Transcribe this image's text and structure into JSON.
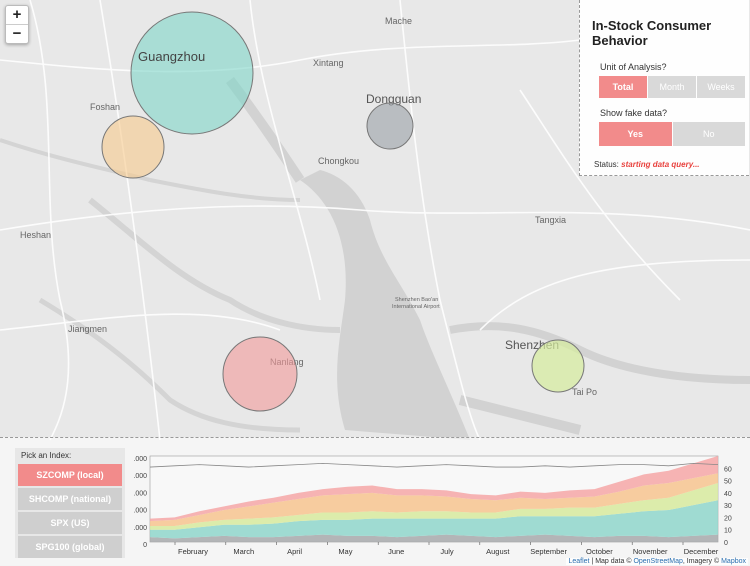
{
  "map": {
    "zoom_in": "+",
    "zoom_out": "−",
    "labels": [
      "Mache",
      "Xintang",
      "Foshan",
      "Dongguan",
      "Chongkou",
      "Heshan",
      "Tangxia",
      "Jiangmen",
      "Nanlang",
      "Shenzhen",
      "Tai Po",
      "Shenzhen Bao'an",
      "International Airport"
    ],
    "bubbles": [
      {
        "label": "Guangzhou",
        "color": "#7fd6c8"
      },
      {
        "label": "",
        "color": "#f7c98c"
      },
      {
        "label": "Dongguan",
        "color": "#9aa0a6"
      },
      {
        "label": "",
        "color": "#f29a9a"
      },
      {
        "label": "Shenzhen",
        "color": "#d6ec9c"
      }
    ]
  },
  "panel": {
    "title": "In-Stock Consumer Behavior",
    "unit_label": "Unit of Analysis?",
    "unit_options": [
      "Total",
      "Month",
      "Weeks"
    ],
    "fake_label": "Show fake data?",
    "fake_options": [
      "Yes",
      "No"
    ],
    "status_label": "Status:",
    "status_value": "starting data query..."
  },
  "index": {
    "title": "Pick an Index:",
    "options": [
      "SZCOMP (local)",
      "SHCOMP (national)",
      "SPX (US)",
      "SPG100 (global)"
    ]
  },
  "attribution": {
    "leaflet": "Leaflet",
    "rest": " | Map data © ",
    "osm": "OpenStreetMap",
    "imagery": ", Imagery © ",
    "mapbox": "Mapbox"
  },
  "chart_data": {
    "type": "area",
    "months": [
      "February",
      "March",
      "April",
      "May",
      "June",
      "July",
      "August",
      "September",
      "October",
      "November",
      "December"
    ],
    "left_ticks": [
      ".000",
      ".000",
      ".000",
      ".000",
      ".000",
      "0"
    ],
    "right_ticks": [
      60,
      50,
      40,
      30,
      20,
      10,
      0
    ],
    "right_ylim": [
      0,
      70
    ],
    "series": [
      {
        "name": "grey",
        "color": "#a7a9ac",
        "values": [
          4,
          3,
          4,
          5,
          4,
          4,
          5,
          6,
          5,
          5,
          4,
          5,
          6,
          5,
          4,
          5,
          6,
          5,
          4,
          5,
          5,
          4,
          5,
          6
        ]
      },
      {
        "name": "teal",
        "color": "#8fd6cb",
        "values": [
          6,
          7,
          8,
          9,
          10,
          11,
          12,
          12,
          13,
          14,
          15,
          14,
          13,
          14,
          15,
          16,
          15,
          16,
          17,
          18,
          20,
          22,
          25,
          28
        ]
      },
      {
        "name": "green",
        "color": "#d7ea9e",
        "values": [
          3,
          3,
          4,
          4,
          5,
          5,
          5,
          6,
          6,
          6,
          5,
          6,
          6,
          5,
          5,
          6,
          6,
          7,
          7,
          8,
          9,
          10,
          12,
          14
        ]
      },
      {
        "name": "orange",
        "color": "#f7c48f",
        "values": [
          4,
          5,
          6,
          8,
          10,
          12,
          13,
          14,
          15,
          15,
          14,
          13,
          12,
          11,
          10,
          9,
          8,
          8,
          9,
          10,
          12,
          12,
          10,
          8
        ]
      },
      {
        "name": "red",
        "color": "#f6a7a7",
        "values": [
          2,
          2,
          3,
          3,
          4,
          4,
          5,
          5,
          6,
          6,
          5,
          5,
          5,
          4,
          4,
          5,
          5,
          6,
          6,
          8,
          9,
          10,
          12,
          14
        ]
      }
    ],
    "line_values": [
      61,
      62,
      63,
      62,
      61,
      62,
      63,
      64,
      63,
      62,
      61,
      62,
      63,
      62,
      61,
      61,
      62,
      61,
      62,
      63,
      63,
      62,
      64,
      63
    ]
  }
}
